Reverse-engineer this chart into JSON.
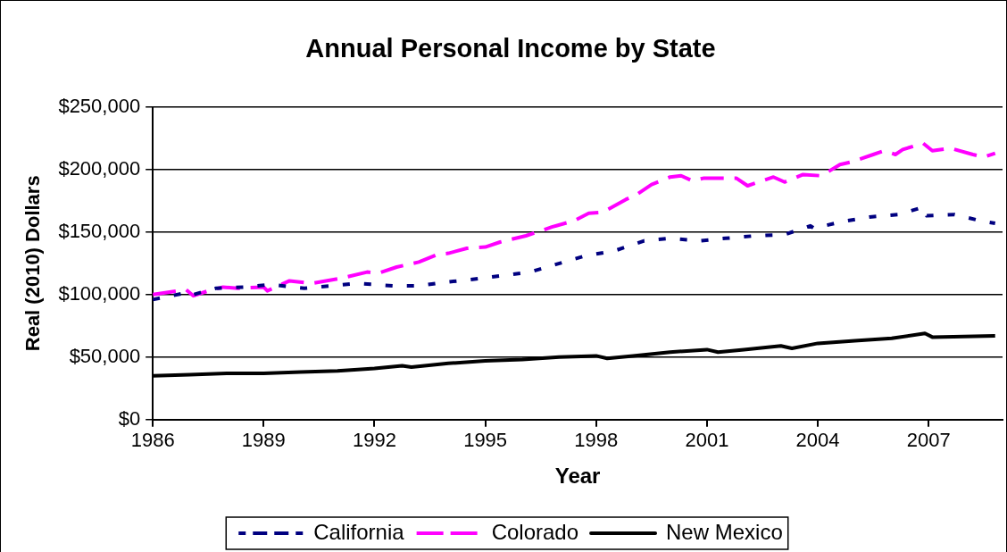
{
  "chart_data": {
    "type": "line",
    "title": "Annual Personal Income by State",
    "xlabel": "Year",
    "ylabel": "Real (2010) Dollars",
    "xlim": [
      1986,
      2009
    ],
    "xticks": [
      1986,
      1989,
      1992,
      1995,
      1998,
      2001,
      2004,
      2007
    ],
    "ylim": [
      0,
      250000
    ],
    "yticks": [
      {
        "value": 0,
        "label": "$0"
      },
      {
        "value": 50000,
        "label": "$50,000"
      },
      {
        "value": 100000,
        "label": "$100,000"
      },
      {
        "value": 150000,
        "label": "$150,000"
      },
      {
        "value": 200000,
        "label": "$200,000"
      },
      {
        "value": 250000,
        "label": "$250,000"
      }
    ],
    "grid": "y",
    "legend": "bottom",
    "marker": "none",
    "series": [
      {
        "name": "California",
        "color": "#000080",
        "line_style": "dotted",
        "x": [
          1986,
          1987,
          1987.1,
          1987.7,
          1988.5,
          1989.2,
          1990.1,
          1990.85,
          1991.5,
          1992.5,
          1993.2,
          1993.96,
          1994.6,
          1995.4,
          1996.2,
          1996.9,
          1997.7,
          1998.5,
          1999.3,
          2000,
          2000.8,
          2001.5,
          2002.3,
          2003.1,
          2003.8,
          2003.9,
          2004.6,
          2005.4,
          2006.2,
          2006.85,
          2006.95,
          2007.7,
          2008.4,
          2008.8
        ],
        "values": [
          96000,
          102000,
          100000,
          105000,
          106000,
          108000,
          105000,
          107000,
          109000,
          107000,
          107000,
          110000,
          112000,
          115000,
          118000,
          124000,
          131000,
          135000,
          143000,
          145000,
          143000,
          145000,
          147000,
          148000,
          155000,
          153000,
          158000,
          162000,
          164000,
          170000,
          163000,
          164000,
          159000,
          157000
        ]
      },
      {
        "name": "Colorado",
        "color": "#ff00ff",
        "line_style": "dashed",
        "x": [
          1986,
          1986.9,
          1987.1,
          1987.5,
          1987.9,
          1988.3,
          1989,
          1989.1,
          1989.7,
          1990.3,
          1991.1,
          1991.8,
          1992.1,
          1992.6,
          1993.2,
          1993.7,
          1994,
          1994.5,
          1995,
          1995.4,
          1996.1,
          1996.8,
          1997.4,
          1997.8,
          1998.2,
          1998.8,
          1999.1,
          1999.5,
          2000,
          2000.3,
          2000.6,
          2000.9,
          2001.8,
          2002.1,
          2002.8,
          2003.1,
          2003.6,
          2004.1,
          2004.6,
          2004.9,
          2005.5,
          2005.8,
          2006.1,
          2006.3,
          2006.85,
          2007.1,
          2007.6,
          2008.2,
          2008.5,
          2008.8
        ],
        "values": [
          100000,
          104000,
          99000,
          103000,
          106000,
          105000,
          106000,
          103000,
          111000,
          109000,
          113000,
          118000,
          117000,
          122000,
          126000,
          132000,
          133000,
          137000,
          138000,
          142000,
          147000,
          154000,
          159000,
          165000,
          166000,
          176000,
          180000,
          188000,
          194000,
          195000,
          191000,
          193000,
          193000,
          187000,
          194000,
          190000,
          196000,
          195000,
          204000,
          206000,
          212000,
          215000,
          212000,
          216000,
          221000,
          215000,
          217000,
          212000,
          210000,
          213000
        ]
      },
      {
        "name": "New Mexico",
        "color": "#000000",
        "line_style": "solid",
        "x": [
          1986,
          1987,
          1988,
          1989,
          1990,
          1991,
          1992,
          1992.75,
          1993,
          1994,
          1995,
          1996,
          1997,
          1998,
          1998.3,
          1999,
          2000,
          2001,
          2001.3,
          2002,
          2003,
          2003.3,
          2004,
          2005,
          2006,
          2006.9,
          2007.1,
          2008.8
        ],
        "values": [
          35000,
          36000,
          37000,
          37000,
          38000,
          39000,
          41000,
          43000,
          42000,
          45000,
          47000,
          48000,
          50000,
          51000,
          49000,
          51000,
          54000,
          56000,
          54000,
          56000,
          59000,
          57000,
          61000,
          63000,
          65000,
          69000,
          66000,
          67000
        ]
      }
    ]
  }
}
